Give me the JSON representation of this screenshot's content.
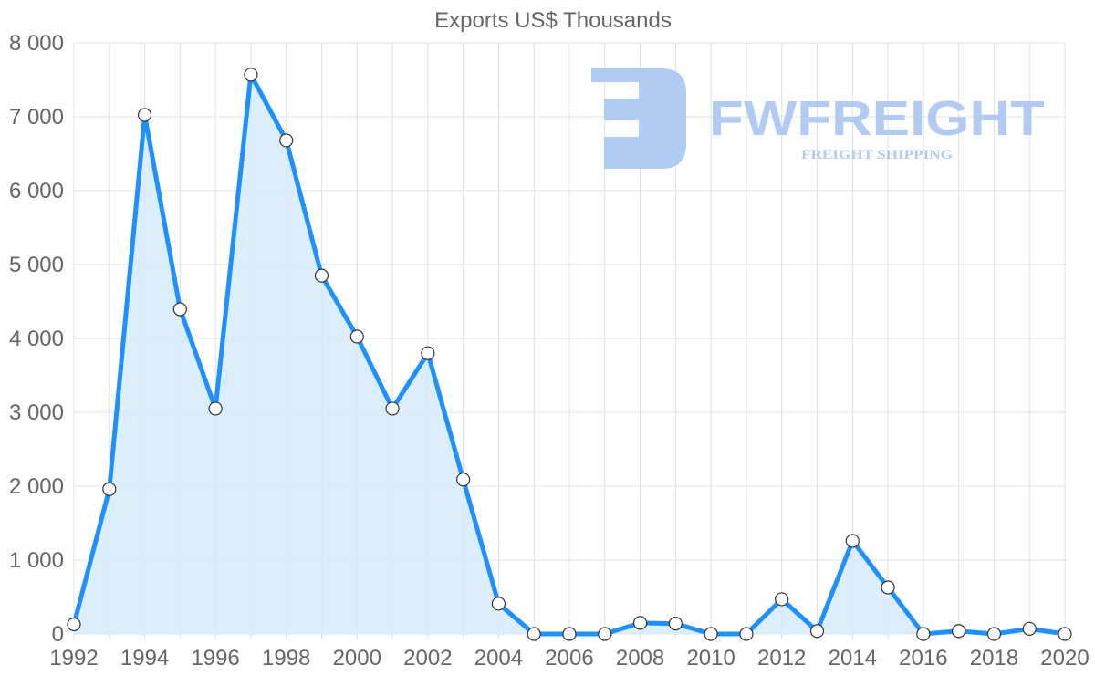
{
  "chart_data": {
    "type": "area",
    "title": "Exports US$ Thousands",
    "xlabel": "",
    "ylabel": "",
    "x": [
      1992,
      1993,
      1994,
      1995,
      1996,
      1997,
      1998,
      1999,
      2000,
      2001,
      2002,
      2003,
      2004,
      2005,
      2006,
      2007,
      2008,
      2009,
      2010,
      2011,
      2012,
      2013,
      2014,
      2015,
      2016,
      2017,
      2018,
      2019,
      2020
    ],
    "series": [
      {
        "name": "Exports US$ Thousands",
        "values": [
          130,
          1960,
          7025,
          4395,
          3050,
          7570,
          6680,
          4850,
          4025,
          3050,
          3800,
          2090,
          410,
          0,
          0,
          0,
          150,
          140,
          0,
          0,
          470,
          40,
          1260,
          630,
          0,
          40,
          0,
          70,
          0
        ]
      }
    ],
    "x_tick_labels": [
      "1992",
      "1994",
      "1996",
      "1998",
      "2000",
      "2002",
      "2004",
      "2006",
      "2008",
      "2010",
      "2012",
      "2014",
      "2016",
      "2018",
      "2020"
    ],
    "y_tick_labels": [
      "0",
      "1 000",
      "2 000",
      "3 000",
      "4 000",
      "5 000",
      "6 000",
      "7 000",
      "8 000"
    ],
    "ylim": [
      0,
      8000
    ],
    "grid": true,
    "legend": "none",
    "colors": {
      "line": "#1E90FF",
      "fill": "#D6EAFB",
      "point_fill": "#FFFFFF",
      "point_stroke": "#333333",
      "grid": "#E0E0E0",
      "text": "#666666"
    }
  },
  "watermark": {
    "brand": "FWFREIGHT",
    "tagline": "FREIGHT SHIPPING",
    "color": "#A9C6F2"
  }
}
